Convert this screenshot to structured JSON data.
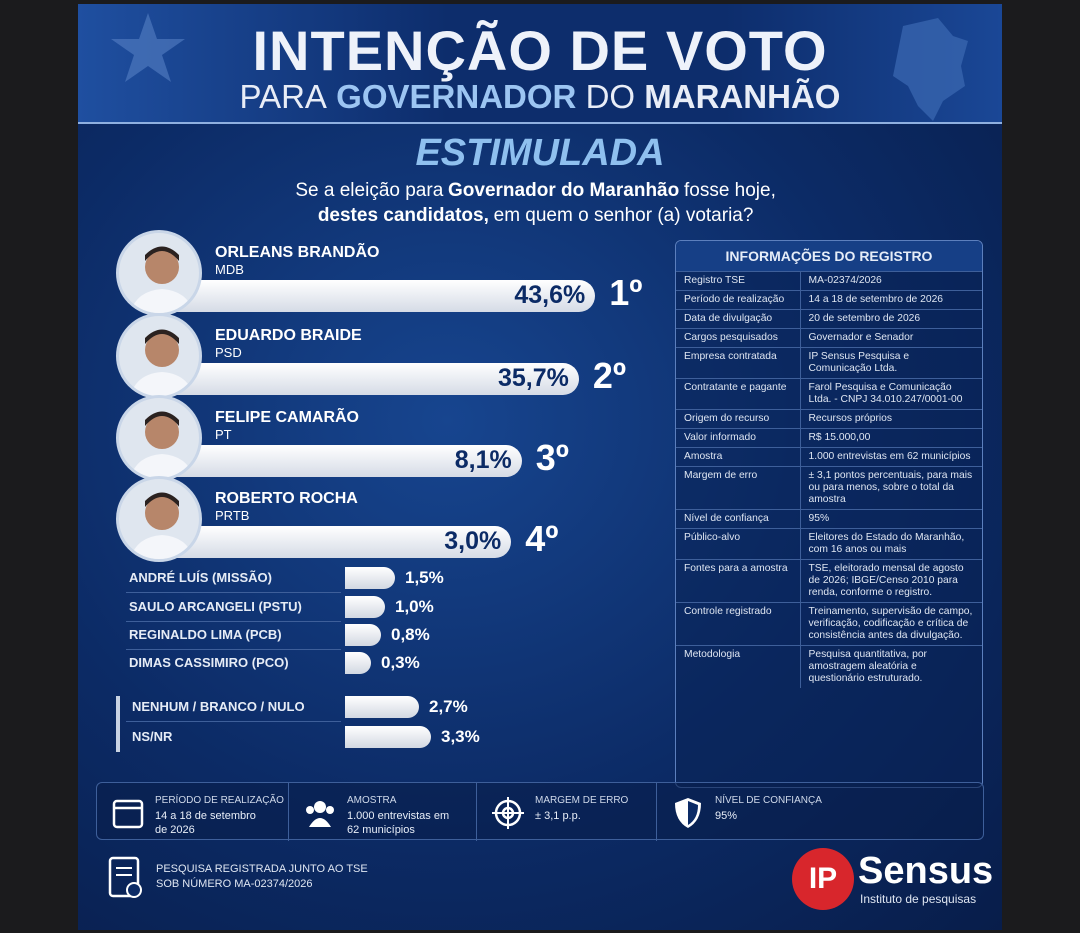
{
  "header": {
    "title": "INTENÇÃO DE VOTO",
    "subtitle_parts": [
      "PARA",
      "GOVERNADOR",
      "DO",
      "MARANHÃO"
    ],
    "section": "ESTIMULADA",
    "question_parts": [
      "Se a eleição para",
      "Governador do Maranhão",
      "fosse hoje,",
      "destes candidatos,",
      "em quem o senhor (a) votaria?"
    ]
  },
  "candidates": [
    {
      "name": "ORLEANS BRANDÃO",
      "party": "MDB",
      "value": 43.6,
      "value_label": "43,6%",
      "rank": "1º"
    },
    {
      "name": "EDUARDO BRAIDE",
      "party": "PSD",
      "value": 35.7,
      "value_label": "35,7%",
      "rank": "2º"
    },
    {
      "name": "FELIPE CAMARÃO",
      "party": "PT",
      "value": 8.1,
      "value_label": "8,1%",
      "rank": "3º"
    },
    {
      "name": "ROBERTO ROCHA",
      "party": "PRTB",
      "value": 3.0,
      "value_label": "3,0%",
      "rank": "4º"
    }
  ],
  "minor_candidates": [
    {
      "name": "ANDRÉ LUÍS (MISSÃO)",
      "value": 1.5,
      "value_label": "1,5%"
    },
    {
      "name": "SAULO ARCANGELI (PSTU)",
      "value": 1.0,
      "value_label": "1,0%"
    },
    {
      "name": "REGINALDO LIMA (PCB)",
      "value": 0.8,
      "value_label": "0,8%"
    },
    {
      "name": "DIMAS CASSIMIRO (PCO)",
      "value": 0.3,
      "value_label": "0,3%"
    }
  ],
  "others": [
    {
      "name": "NENHUM / BRANCO / NULO",
      "value": 2.7,
      "value_label": "2,7%"
    },
    {
      "name": "NS/NR",
      "value": 3.3,
      "value_label": "3,3%"
    }
  ],
  "registry": {
    "title": "INFORMAÇÕES DO REGISTRO",
    "rows": [
      [
        "Registro TSE",
        "MA-02374/2026"
      ],
      [
        "Período de realização",
        "14 a 18 de setembro de 2026"
      ],
      [
        "Data de divulgação",
        "20 de setembro de 2026"
      ],
      [
        "Cargos pesquisados",
        "Governador e Senador"
      ],
      [
        "Empresa contratada",
        "IP Sensus Pesquisa e Comunicação Ltda."
      ],
      [
        "Contratante e pagante",
        "Farol Pesquisa e Comunicação Ltda. - CNPJ 34.010.247/0001-00"
      ],
      [
        "Origem do recurso",
        "Recursos próprios"
      ],
      [
        "Valor informado",
        "R$ 15.000,00"
      ],
      [
        "Amostra",
        "1.000 entrevistas em 62 municípios"
      ],
      [
        "Margem de erro",
        "± 3,1 pontos percentuais, para mais ou para menos, sobre o total da amostra"
      ],
      [
        "Nível de confiança",
        "95%"
      ],
      [
        "Público-alvo",
        "Eleitores do Estado do Maranhão, com 16 anos ou mais"
      ],
      [
        "Fontes para a amostra",
        "TSE, eleitorado mensal de agosto de 2026; IBGE/Censo 2010 para renda, conforme o registro."
      ],
      [
        "Controle registrado",
        "Treinamento, supervisão de campo, verificação, codificação e crítica de consistência antes da divulgação."
      ],
      [
        "Metodologia",
        "Pesquisa quantitativa, por amostragem aleatória e questionário estruturado."
      ]
    ]
  },
  "summary": [
    {
      "label": "PERÍODO DE REALIZAÇÃO",
      "value": "14 a 18 de setembro de 2026"
    },
    {
      "label": "AMOSTRA",
      "value": "1.000 entrevistas em 62 municípios"
    },
    {
      "label": "MARGEM DE ERRO",
      "value": "± 3,1 p.p."
    },
    {
      "label": "NÍVEL DE CONFIANÇA",
      "value": "95%"
    }
  ],
  "footer": {
    "registration_lines": [
      "PESQUISA REGISTRADA JUNTO AO TSE",
      "SOB NÚMERO MA-02374/2026"
    ],
    "logo_mark": "IP",
    "logo_name": "Sensus",
    "logo_tagline": "Instituto de pesquisas"
  }
}
